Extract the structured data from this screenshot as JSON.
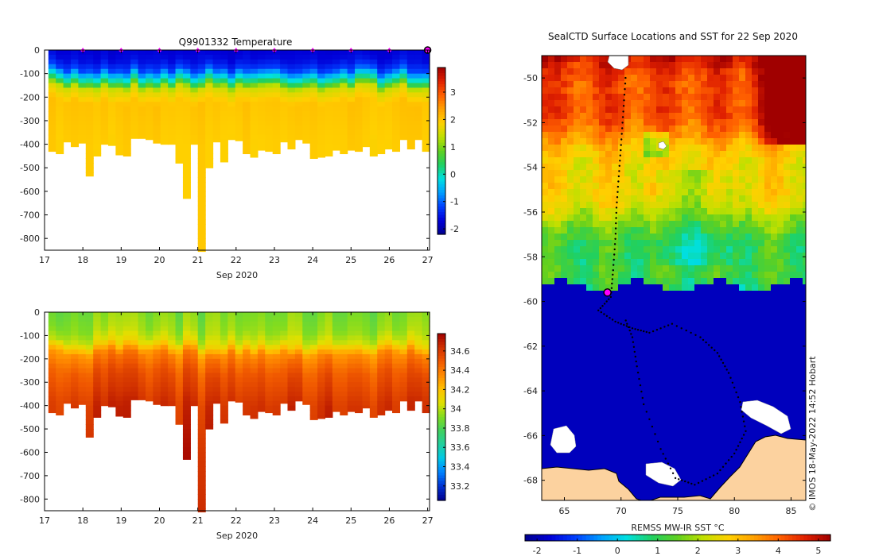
{
  "colors": {
    "temp_cmap": [
      "#00008f",
      "#0000d8",
      "#0040ff",
      "#00a0ff",
      "#00e0e0",
      "#20d060",
      "#60d020",
      "#c0e000",
      "#ffd000",
      "#ffa000",
      "#ff6000",
      "#e02000",
      "#a00000"
    ],
    "sal_cmap": [
      "#00008f",
      "#0030d0",
      "#0080ff",
      "#00c8e8",
      "#20d0a0",
      "#40d060",
      "#80dc20",
      "#e0e000",
      "#ffc000",
      "#ff8a00",
      "#f05800",
      "#d03000",
      "#a00000"
    ],
    "land": "#fcd29f",
    "frame": "#000000"
  },
  "temperature_panel": {
    "chart_data": {
      "type": "heatmap",
      "title": "Q9901332  Temperature",
      "xlabel": "Sep 2020",
      "ylabel": "",
      "xlim": [
        17,
        27.05
      ],
      "ylim": [
        -850,
        0
      ],
      "x_ticks": [
        "17",
        "18",
        "19",
        "20",
        "21",
        "22",
        "23",
        "24",
        "25",
        "26",
        "27"
      ],
      "y_ticks": [
        "0",
        "-100",
        "-200",
        "-300",
        "-400",
        "-500",
        "-600",
        "-700",
        "-800"
      ],
      "colorbar_range": [
        -2.2,
        3.9
      ],
      "colorbar_ticks": [
        "3",
        "2",
        "1",
        "0",
        "-1",
        "-2"
      ],
      "profile_max_depth_m": [
        430,
        440,
        390,
        410,
        395,
        535,
        450,
        400,
        405,
        445,
        450,
        375,
        375,
        380,
        395,
        400,
        400,
        480,
        630,
        400,
        855,
        500,
        390,
        475,
        380,
        385,
        440,
        455,
        425,
        430,
        440,
        390,
        420,
        380,
        395,
        460,
        455,
        450,
        425,
        440,
        425,
        430,
        410,
        450,
        440,
        420,
        430,
        380,
        420,
        380,
        430
      ],
      "vertical_structure": [
        {
          "depth_m": 0,
          "temp_c": -1.7
        },
        {
          "depth_m": 40,
          "temp_c": -1.6
        },
        {
          "depth_m": 80,
          "temp_c": -1.2
        },
        {
          "depth_m": 110,
          "temp_c": -0.3
        },
        {
          "depth_m": 135,
          "temp_c": 0.4
        },
        {
          "depth_m": 160,
          "temp_c": 1.5
        },
        {
          "depth_m": 220,
          "temp_c": 2.0
        },
        {
          "depth_m": 400,
          "temp_c": 1.9
        },
        {
          "depth_m": 850,
          "temp_c": 1.9
        }
      ],
      "surface_markers_day": [
        18,
        19,
        20,
        21,
        22,
        23,
        24,
        25,
        26,
        27
      ]
    }
  },
  "salinity_panel": {
    "chart_data": {
      "type": "heatmap",
      "title": "",
      "xlabel": "Sep 2020",
      "ylabel": "",
      "xlim": [
        17,
        27.05
      ],
      "ylim": [
        -850,
        0
      ],
      "x_ticks": [
        "17",
        "18",
        "19",
        "20",
        "21",
        "22",
        "23",
        "24",
        "25",
        "26",
        "27"
      ],
      "y_ticks": [
        "0",
        "-100",
        "-200",
        "-300",
        "-400",
        "-500",
        "-600",
        "-700",
        "-800"
      ],
      "colorbar_range": [
        33.05,
        34.78
      ],
      "colorbar_ticks": [
        "34.6",
        "34.4",
        "34.2",
        "34",
        "33.8",
        "33.6",
        "33.4",
        "33.2"
      ],
      "vertical_structure": [
        {
          "depth_m": 0,
          "sal": 33.9
        },
        {
          "depth_m": 80,
          "sal": 33.95
        },
        {
          "depth_m": 130,
          "sal": 34.05
        },
        {
          "depth_m": 180,
          "sal": 34.35
        },
        {
          "depth_m": 260,
          "sal": 34.5
        },
        {
          "depth_m": 400,
          "sal": 34.62
        },
        {
          "depth_m": 600,
          "sal": 34.68
        },
        {
          "depth_m": 850,
          "sal": 34.72
        }
      ]
    }
  },
  "map_panel": {
    "chart_data": {
      "type": "heatmap",
      "title": "SealCTD Surface Locations and SST for 22 Sep 2020",
      "xlabel": "",
      "ylabel": "",
      "xlim": [
        63,
        86.3
      ],
      "ylim": [
        -68.9,
        -49
      ],
      "x_ticks": [
        "65",
        "70",
        "75",
        "80",
        "85"
      ],
      "y_ticks": [
        "-50",
        "-52",
        "-54",
        "-56",
        "-58",
        "-60",
        "-62",
        "-64",
        "-66",
        "-68"
      ],
      "ice_edge_lat": -59.3,
      "track_points": [
        {
          "lon": 70.4,
          "lat": -50.0
        },
        {
          "lon": 70.2,
          "lat": -51.5
        },
        {
          "lon": 70.0,
          "lat": -53.0
        },
        {
          "lon": 69.8,
          "lat": -54.4
        },
        {
          "lon": 69.6,
          "lat": -55.8
        },
        {
          "lon": 69.5,
          "lat": -57.2
        },
        {
          "lon": 69.3,
          "lat": -58.6
        },
        {
          "lon": 69.1,
          "lat": -59.8
        },
        {
          "lon": 68.0,
          "lat": -60.4
        },
        {
          "lon": 69.5,
          "lat": -60.9
        },
        {
          "lon": 71.0,
          "lat": -61.2
        },
        {
          "lon": 72.5,
          "lat": -61.4
        },
        {
          "lon": 74.5,
          "lat": -61.0
        },
        {
          "lon": 77.0,
          "lat": -61.6
        },
        {
          "lon": 78.5,
          "lat": -62.3
        },
        {
          "lon": 79.5,
          "lat": -63.2
        },
        {
          "lon": 80.5,
          "lat": -64.5
        },
        {
          "lon": 81.0,
          "lat": -65.8
        },
        {
          "lon": 80.0,
          "lat": -66.8
        },
        {
          "lon": 78.5,
          "lat": -67.7
        },
        {
          "lon": 76.5,
          "lat": -68.2
        },
        {
          "lon": 74.8,
          "lat": -67.9
        },
        {
          "lon": 73.5,
          "lat": -66.6
        },
        {
          "lon": 72.0,
          "lat": -64.6
        },
        {
          "lon": 71.4,
          "lat": -62.9
        },
        {
          "lon": 71.0,
          "lat": -61.6
        },
        {
          "lon": 70.3,
          "lat": -60.7
        }
      ],
      "current_position": {
        "lon": 68.8,
        "lat": -59.6
      },
      "colorbar_range": [
        -2.3,
        5.3
      ],
      "colorbar_ticks": [
        "-2",
        "-1",
        "0",
        "1",
        "2",
        "3",
        "4",
        "5"
      ],
      "colorbar_label": "REMSS MW-IR SST °C",
      "credit": "© IMOS 18-May-2022 14:52 Hobart"
    }
  }
}
